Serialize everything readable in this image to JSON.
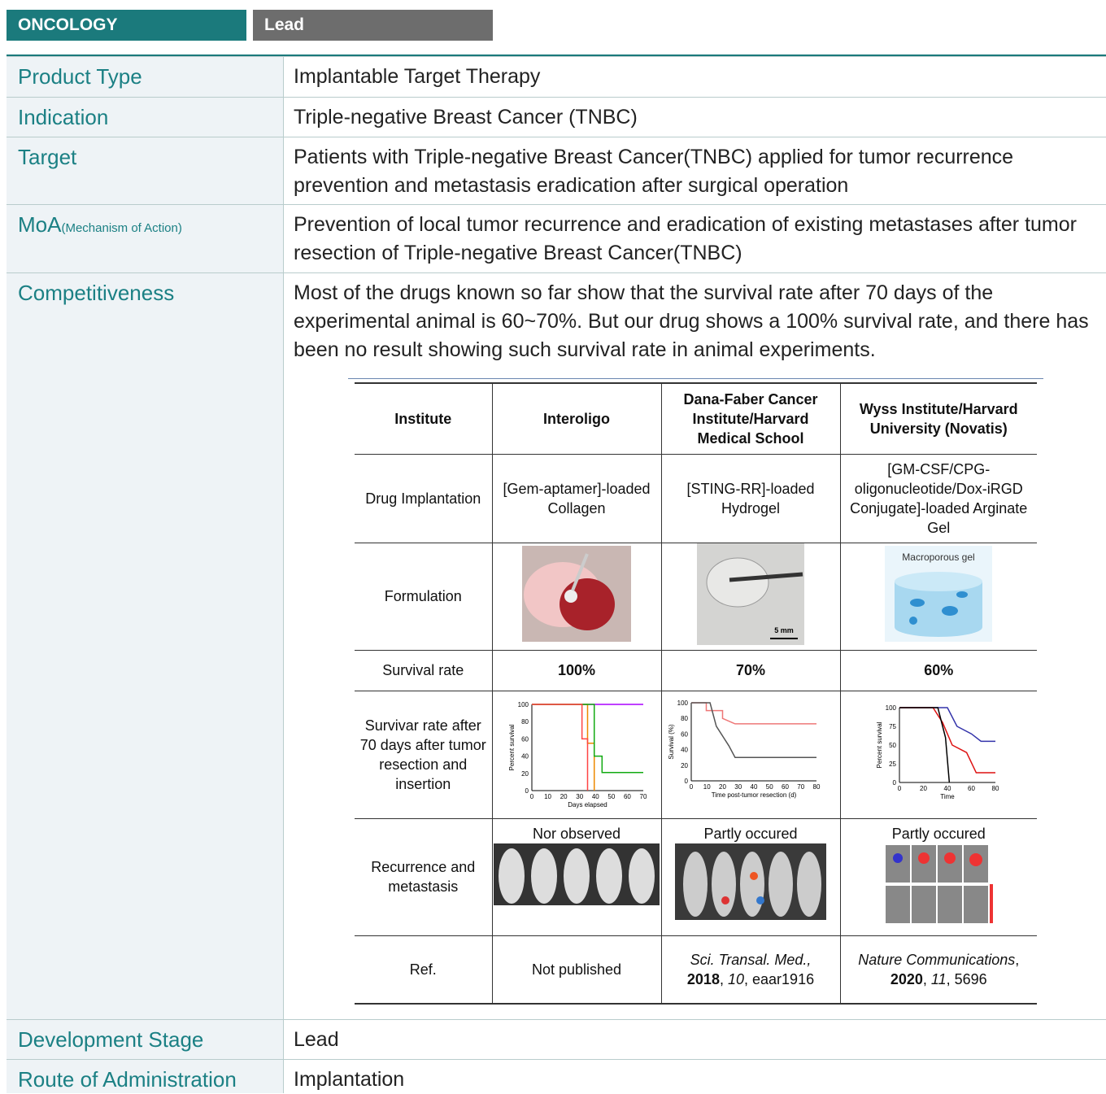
{
  "header": {
    "category": "ONCOLOGY",
    "stage": "Lead"
  },
  "table": {
    "rows": [
      {
        "label": "Product Type",
        "value": "Implantable Target Therapy"
      },
      {
        "label": "Indication",
        "value": "Triple-negative Breast Cancer (TNBC)"
      },
      {
        "label": "Target",
        "value": "Patients with Triple-negative Breast Cancer(TNBC) applied for tumor recurrence prevention and metastasis eradication after surgical operation"
      },
      {
        "label": "MoA",
        "sublabel": "(Mechanism of Action)",
        "value": "Prevention of local tumor recurrence and eradication of existing metastases after tumor resection of Triple-negative Breast Cancer(TNBC)"
      },
      {
        "label": "Competitiveness",
        "value": "Most of the drugs known so far show that the survival rate after 70 days of the experimental animal is 60~70%. But our drug shows a 100% survival rate, and there has been no result showing such survival rate in animal experiments."
      },
      {
        "label": "Development Stage",
        "value": "Lead"
      },
      {
        "label": "Route of Administration",
        "value": "Implantation"
      }
    ]
  },
  "comparison": {
    "header": [
      "Institute",
      "Interoligo",
      "Dana-Faber Cancer Institute/Harvard Medical School",
      "Wyss Institute/Harvard University (Novatis)"
    ],
    "drug": [
      "Drug Implantation",
      "[Gem-aptamer]-loaded Collagen",
      "[STING-RR]-loaded Hydrogel",
      "[GM-CSF/CPG-oligonucleotide/Dox-iRGD Conjugate]-loaded Arginate Gel"
    ],
    "formulation": {
      "label": "Formulation",
      "image_labels": [
        "5 mm",
        "Macroporous gel"
      ]
    },
    "survival": [
      "Survival rate",
      "100%",
      "70%",
      "60%"
    ],
    "curves": {
      "label": "Survivar rate after 70 days after tumor resection and insertion",
      "charts": [
        {
          "ylabel": "Percent survival",
          "xlabel": "Days elapsed",
          "yticks": [
            "0",
            "20",
            "40",
            "60",
            "80",
            "100"
          ],
          "xticks": [
            "0",
            "10",
            "20",
            "30",
            "40",
            "50",
            "60",
            "70"
          ]
        },
        {
          "ylabel": "Survival (%)",
          "xlabel": "Time post-tumor resection (d)",
          "yticks": [
            "0",
            "20",
            "40",
            "60",
            "80",
            "100"
          ],
          "xticks": [
            "0",
            "10",
            "20",
            "30",
            "40",
            "50",
            "60",
            "70",
            "80"
          ]
        },
        {
          "ylabel": "Percent survival",
          "xlabel": "Time",
          "yticks": [
            "0",
            "25",
            "50",
            "75",
            "100"
          ],
          "xticks": [
            "0",
            "20",
            "40",
            "60",
            "80"
          ]
        }
      ]
    },
    "recurrence": [
      "Recurrence and metastasis",
      "Nor observed",
      "Partly occured",
      "Partly occured"
    ],
    "ref": {
      "label": "Ref.",
      "interoligo": "Not published",
      "dana": [
        "Sci. Transal. Med.,",
        "2018",
        ",",
        "10",
        ", eaar1916"
      ],
      "wyss": [
        "Nature Communications",
        ",",
        "2020",
        ",",
        "11",
        ", 5696"
      ]
    }
  }
}
